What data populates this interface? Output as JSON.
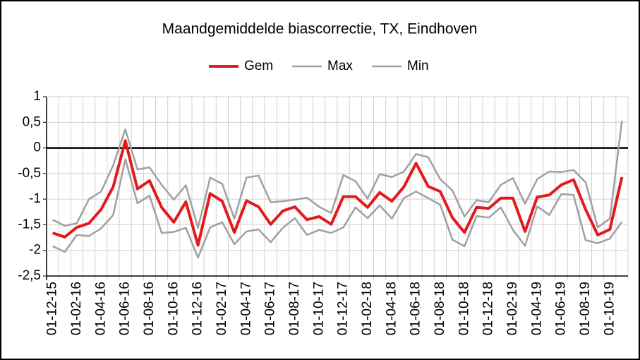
{
  "chart_data": {
    "type": "line",
    "title": "Maandgemiddelde biascorrectie, TX, Eindhoven",
    "categories": [
      "01-12-15",
      null,
      "01-02-16",
      null,
      "01-04-16",
      null,
      "01-06-16",
      null,
      "01-08-16",
      null,
      "01-10-16",
      null,
      "01-12-16",
      null,
      "01-02-17",
      null,
      "01-04-17",
      null,
      "01-06-17",
      null,
      "01-08-17",
      null,
      "01-10-17",
      null,
      "01-12-17",
      null,
      "01-02-18",
      null,
      "01-04-18",
      null,
      "01-06-18",
      null,
      "01-08-18",
      null,
      "01-10-18",
      null,
      "01-12-18",
      null,
      "01-02-19",
      null,
      "01-04-19",
      null,
      "01-06-19",
      null,
      "01-08-19",
      null,
      "01-10-19",
      null
    ],
    "series": [
      {
        "name": "Gem",
        "color": "#e31a1c",
        "width": 4,
        "values": [
          -1.66,
          -1.74,
          -1.55,
          -1.47,
          -1.2,
          -0.76,
          0.14,
          -0.8,
          -0.64,
          -1.16,
          -1.45,
          -1.05,
          -1.9,
          -0.89,
          -1.04,
          -1.65,
          -1.03,
          -1.15,
          -1.49,
          -1.23,
          -1.15,
          -1.4,
          -1.34,
          -1.49,
          -0.95,
          -0.95,
          -1.16,
          -0.87,
          -1.04,
          -0.76,
          -0.3,
          -0.75,
          -0.85,
          -1.36,
          -1.65,
          -1.16,
          -1.18,
          -0.98,
          -0.98,
          -1.63,
          -0.96,
          -0.92,
          -0.72,
          -0.62,
          -1.2,
          -1.7,
          -1.59,
          -0.57
        ]
      },
      {
        "name": "Max",
        "color": "#a0a0a0",
        "width": 2.5,
        "values": [
          -1.4,
          -1.52,
          -1.47,
          -1.0,
          -0.85,
          -0.34,
          0.36,
          -0.42,
          -0.38,
          -0.72,
          -1.01,
          -0.73,
          -1.56,
          -0.58,
          -0.7,
          -1.38,
          -0.58,
          -0.54,
          -1.06,
          -1.04,
          -1.01,
          -0.97,
          -1.15,
          -1.27,
          -0.53,
          -0.65,
          -0.99,
          -0.51,
          -0.57,
          -0.46,
          -0.12,
          -0.18,
          -0.61,
          -0.83,
          -1.34,
          -1.02,
          -1.06,
          -0.72,
          -0.59,
          -1.09,
          -0.61,
          -0.46,
          -0.47,
          -0.43,
          -0.67,
          -1.55,
          -1.38,
          0.53
        ]
      },
      {
        "name": "Min",
        "color": "#a0a0a0",
        "width": 2.5,
        "values": [
          -1.92,
          -2.03,
          -1.7,
          -1.72,
          -1.57,
          -1.31,
          -0.22,
          -1.08,
          -0.93,
          -1.66,
          -1.64,
          -1.56,
          -2.14,
          -1.55,
          -1.45,
          -1.88,
          -1.63,
          -1.59,
          -1.84,
          -1.56,
          -1.37,
          -1.7,
          -1.6,
          -1.66,
          -1.55,
          -1.16,
          -1.37,
          -1.12,
          -1.38,
          -0.98,
          -0.85,
          -0.98,
          -1.11,
          -1.79,
          -1.92,
          -1.33,
          -1.36,
          -1.16,
          -1.6,
          -1.91,
          -1.14,
          -1.31,
          -0.9,
          -0.92,
          -1.8,
          -1.86,
          -1.77,
          -1.44
        ]
      }
    ],
    "ylim": [
      -2.5,
      1
    ],
    "yticks": [
      1,
      {
        "value": 0.5,
        "label": "0,5"
      },
      0,
      {
        "value": -0.5,
        "label": "-0,5"
      },
      -1,
      {
        "value": -1.5,
        "label": "-1,5"
      },
      -2,
      {
        "value": -2.5,
        "label": "-2,5"
      }
    ],
    "grid": true
  }
}
